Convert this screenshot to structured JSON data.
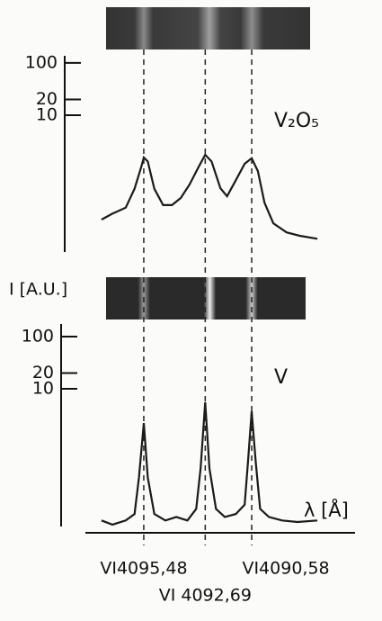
{
  "chart_data": [
    {
      "type": "line",
      "annotation": "V₂O₅",
      "log_y": true,
      "color": "#1a1a1a",
      "ylim": [
        0.024,
        137
      ],
      "yticks": [
        100,
        20,
        10
      ],
      "xlim": [
        4098.13,
        4085.89
      ],
      "x": [
        4097.4,
        4096.9,
        4096.3,
        4095.9,
        4095.6,
        4095.48,
        4095.3,
        4095.0,
        4094.6,
        4094.2,
        4093.8,
        4093.4,
        4093.0,
        4092.69,
        4092.4,
        4092.0,
        4091.7,
        4091.3,
        4090.9,
        4090.58,
        4090.3,
        4090.0,
        4089.6,
        4089.0,
        4088.4,
        4087.6
      ],
      "values": [
        0.1,
        0.13,
        0.17,
        0.39,
        1.0,
        1.55,
        1.3,
        0.39,
        0.19,
        0.19,
        0.26,
        0.47,
        1.0,
        1.74,
        1.3,
        0.4,
        0.28,
        0.57,
        1.17,
        1.5,
        0.85,
        0.21,
        0.085,
        0.057,
        0.049,
        0.043
      ]
    },
    {
      "type": "line",
      "annotation": "V",
      "log_y": true,
      "color": "#1a1a1a",
      "ylabel": "I [A.U.]",
      "xlabel": "λ [Å]",
      "ylim": [
        0.023,
        174
      ],
      "yticks": [
        100,
        20,
        10
      ],
      "xlim": [
        4098.13,
        4085.89
      ],
      "xticks": [
        {
          "value": 4095.48,
          "label": "VI4095,48"
        },
        {
          "value": 4092.69,
          "label": "VI 4092,69"
        },
        {
          "value": 4090.58,
          "label": "VI4090,58"
        }
      ],
      "x": [
        4097.4,
        4096.9,
        4096.3,
        4095.9,
        4095.7,
        4095.48,
        4095.3,
        4095.0,
        4094.5,
        4094.0,
        4093.5,
        4093.1,
        4092.9,
        4092.69,
        4092.5,
        4092.2,
        4091.8,
        4091.3,
        4090.9,
        4090.75,
        4090.58,
        4090.4,
        4090.2,
        4089.8,
        4089.2,
        4088.5,
        4087.6
      ],
      "values": [
        0.03,
        0.025,
        0.03,
        0.04,
        0.2,
        2.2,
        0.2,
        0.04,
        0.03,
        0.035,
        0.03,
        0.05,
        0.3,
        5.5,
        0.3,
        0.05,
        0.035,
        0.04,
        0.06,
        0.4,
        3.7,
        0.4,
        0.05,
        0.035,
        0.03,
        0.028,
        0.03
      ]
    }
  ]
}
